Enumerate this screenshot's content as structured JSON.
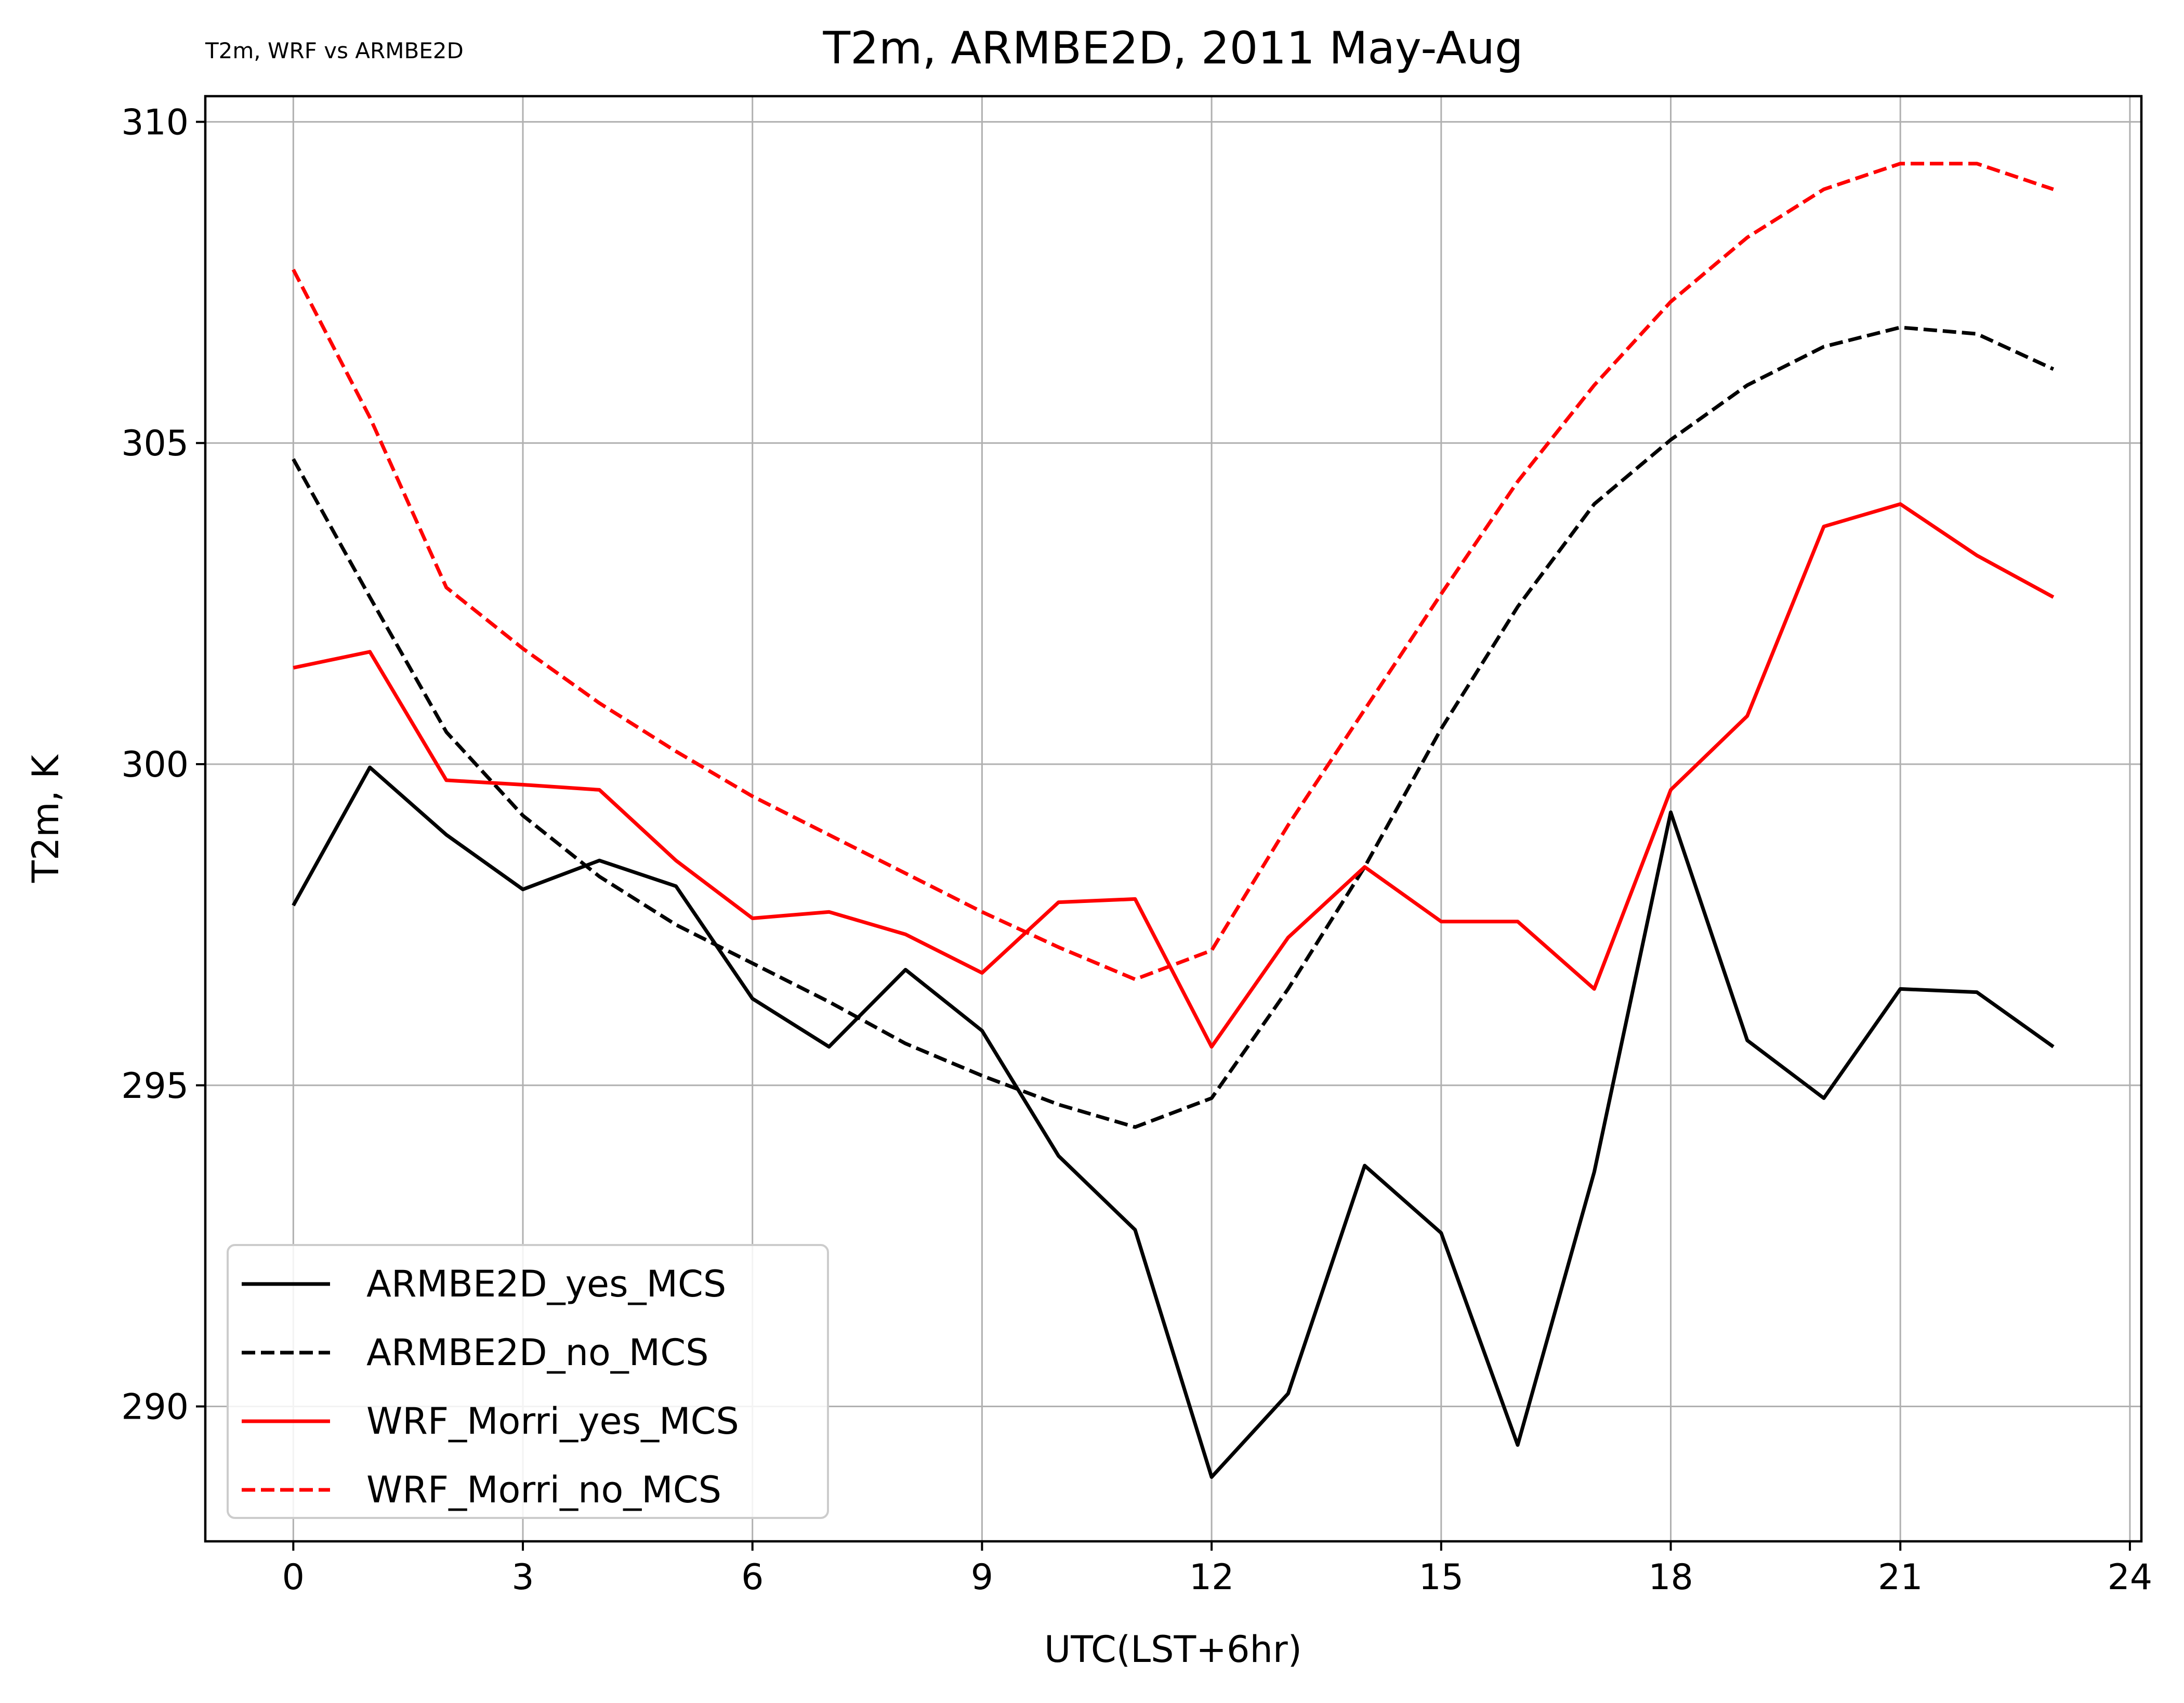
{
  "corner_note": "T2m, WRF vs ARMBE2D",
  "chart_data": {
    "type": "line",
    "title": "T2m, ARMBE2D, 2011 May-Aug",
    "xlabel": "UTC(LST+6hr)",
    "ylabel": "T2m, K",
    "xlim": [
      -1.15,
      24.15
    ],
    "ylim": [
      287.9,
      310.4
    ],
    "xticks": [
      0,
      3,
      6,
      9,
      12,
      15,
      18,
      21,
      24
    ],
    "xtick_labels": [
      "0",
      "3",
      "6",
      "9",
      "12",
      "15",
      "18",
      "21",
      "24"
    ],
    "yticks": [
      290,
      295,
      300,
      305,
      310
    ],
    "ytick_labels": [
      "290",
      "295",
      "300",
      "305",
      "310"
    ],
    "grid": true,
    "legend_position": "lower-left",
    "x": [
      0,
      1,
      2,
      3,
      4,
      5,
      6,
      7,
      8,
      9,
      10,
      11,
      12,
      13,
      14,
      15,
      16,
      17,
      18,
      19,
      20,
      21,
      22,
      23
    ],
    "series": [
      {
        "name": "ARMBE2D_yes_MCS",
        "color": "#000000",
        "style": "solid",
        "values": [
          297.8,
          299.95,
          298.9,
          298.05,
          298.5,
          298.1,
          296.35,
          295.6,
          296.8,
          295.85,
          293.9,
          292.75,
          288.9,
          290.2,
          293.75,
          292.7,
          289.4,
          293.65,
          299.25,
          295.7,
          294.8,
          296.5,
          296.45,
          295.6
        ]
      },
      {
        "name": "ARMBE2D_no_MCS",
        "color": "#000000",
        "style": "dashed",
        "values": [
          304.75,
          302.6,
          300.5,
          299.2,
          298.25,
          297.5,
          296.9,
          296.3,
          295.65,
          295.15,
          294.7,
          294.35,
          294.8,
          296.5,
          298.4,
          300.55,
          302.45,
          304.05,
          305.05,
          305.9,
          306.5,
          306.8,
          306.7,
          306.15
        ]
      },
      {
        "name": "WRF_Morri_yes_MCS",
        "color": "#ff0000",
        "style": "solid",
        "values": [
          301.5,
          301.75,
          299.75,
          299.68,
          299.6,
          298.5,
          297.6,
          297.7,
          297.35,
          296.75,
          297.85,
          297.9,
          295.6,
          297.3,
          298.4,
          297.55,
          297.55,
          296.5,
          299.6,
          300.75,
          303.7,
          304.05,
          303.25,
          302.6
        ]
      },
      {
        "name": "WRF_Morri_no_MCS",
        "color": "#ff0000",
        "style": "dashed",
        "values": [
          307.7,
          305.4,
          302.75,
          301.8,
          300.95,
          300.2,
          299.5,
          298.9,
          298.3,
          297.7,
          297.15,
          296.65,
          297.1,
          299.05,
          300.85,
          302.65,
          304.4,
          305.9,
          307.2,
          308.2,
          308.95,
          309.35,
          309.35,
          308.95
        ]
      }
    ]
  }
}
